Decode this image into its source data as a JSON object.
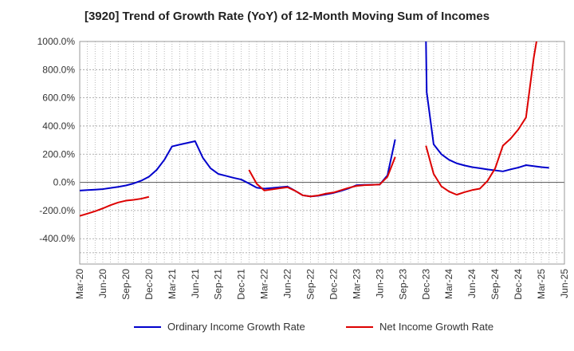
{
  "chart_data": {
    "type": "line",
    "title": "[3920]  Trend of Growth Rate (YoY) of 12-Month Moving Sum of Incomes",
    "xlabel": "",
    "ylabel": "",
    "ylim": [
      -580,
      1000
    ],
    "y_ticks": [
      1000,
      800,
      600,
      400,
      200,
      0,
      -200,
      -400
    ],
    "y_tick_labels": [
      "1000.0%",
      "800.0%",
      "600.0%",
      "400.0%",
      "200.0%",
      "0.0%",
      "-200.0%",
      "-400.0%"
    ],
    "x_range": [
      0,
      63
    ],
    "x_ticks": [
      0,
      3,
      6,
      9,
      12,
      15,
      18,
      21,
      24,
      27,
      30,
      33,
      36,
      39,
      42,
      45,
      48,
      51,
      54,
      57,
      60,
      63
    ],
    "x_tick_labels": [
      "Mar-20",
      "Jun-20",
      "Sep-20",
      "Dec-20",
      "Mar-21",
      "Jun-21",
      "Sep-21",
      "Dec-21",
      "Mar-22",
      "Jun-22",
      "Sep-22",
      "Dec-22",
      "Mar-23",
      "Jun-23",
      "Sep-23",
      "Dec-23",
      "Mar-24",
      "Jun-24",
      "Sep-24",
      "Dec-24",
      "Mar-25",
      "Jun-25"
    ],
    "grid": true,
    "legend_position": "bottom",
    "series": [
      {
        "name": "Ordinary Income Growth Rate",
        "color": "#0000cc",
        "points": [
          [
            0,
            -58
          ],
          [
            1,
            -55
          ],
          [
            2,
            -52
          ],
          [
            3,
            -48
          ],
          [
            4,
            -40
          ],
          [
            5,
            -32
          ],
          [
            6,
            -22
          ],
          [
            7,
            -8
          ],
          [
            8,
            12
          ],
          [
            9,
            40
          ],
          [
            10,
            88
          ],
          [
            11,
            160
          ],
          [
            12,
            255
          ],
          [
            13,
            268
          ],
          [
            14,
            280
          ],
          [
            15,
            292
          ],
          [
            16,
            175
          ],
          [
            17,
            100
          ],
          [
            18,
            60
          ],
          [
            19,
            46
          ],
          [
            20,
            32
          ],
          [
            21,
            20
          ],
          [
            22,
            -8
          ],
          [
            23,
            -38
          ],
          [
            24,
            -45
          ],
          [
            25,
            -40
          ],
          [
            26,
            -35
          ],
          [
            27,
            -30
          ],
          [
            28,
            -60
          ],
          [
            29,
            -92
          ],
          [
            30,
            -100
          ],
          [
            31,
            -95
          ],
          [
            32,
            -85
          ],
          [
            33,
            -75
          ],
          [
            34,
            -60
          ],
          [
            35,
            -42
          ],
          [
            36,
            -20
          ],
          [
            37,
            -18
          ],
          [
            38,
            -17
          ],
          [
            39,
            -15
          ],
          [
            40,
            50
          ],
          [
            41,
            305
          ],
          null,
          [
            45,
            1010
          ],
          [
            45.1,
            640
          ],
          [
            46,
            270
          ],
          [
            47,
            200
          ],
          [
            48,
            160
          ],
          [
            49,
            135
          ],
          [
            50,
            120
          ],
          [
            51,
            108
          ],
          [
            52,
            100
          ],
          [
            53,
            92
          ],
          [
            54,
            85
          ],
          [
            55,
            78
          ],
          [
            56,
            92
          ],
          [
            57,
            105
          ],
          [
            58,
            122
          ],
          [
            59,
            115
          ],
          [
            60,
            108
          ],
          [
            61,
            103
          ]
        ]
      },
      {
        "name": "Net Income Growth Rate",
        "color": "#dd0000",
        "points": [
          [
            0,
            -238
          ],
          [
            1,
            -222
          ],
          [
            2,
            -205
          ],
          [
            3,
            -185
          ],
          [
            4,
            -162
          ],
          [
            5,
            -143
          ],
          [
            6,
            -130
          ],
          [
            7,
            -124
          ],
          [
            8,
            -116
          ],
          [
            9,
            -103
          ],
          null,
          [
            22,
            88
          ],
          [
            23,
            -10
          ],
          [
            24,
            -58
          ],
          [
            25,
            -50
          ],
          [
            26,
            -42
          ],
          [
            27,
            -35
          ],
          [
            28,
            -60
          ],
          [
            29,
            -92
          ],
          [
            30,
            -100
          ],
          [
            31,
            -93
          ],
          [
            32,
            -80
          ],
          [
            33,
            -72
          ],
          [
            34,
            -55
          ],
          [
            35,
            -38
          ],
          [
            36,
            -25
          ],
          [
            37,
            -20
          ],
          [
            38,
            -18
          ],
          [
            39,
            -15
          ],
          [
            40,
            40
          ],
          [
            41,
            180
          ],
          null,
          [
            45,
            260
          ],
          [
            46,
            60
          ],
          [
            47,
            -28
          ],
          [
            48,
            -65
          ],
          [
            49,
            -88
          ],
          [
            50,
            -70
          ],
          [
            51,
            -55
          ],
          [
            52,
            -45
          ],
          [
            53,
            10
          ],
          [
            54,
            100
          ],
          [
            55,
            260
          ],
          [
            56,
            310
          ],
          [
            57,
            375
          ],
          [
            58,
            460
          ],
          [
            59,
            880
          ],
          [
            59.4,
            1010
          ]
        ]
      }
    ]
  }
}
